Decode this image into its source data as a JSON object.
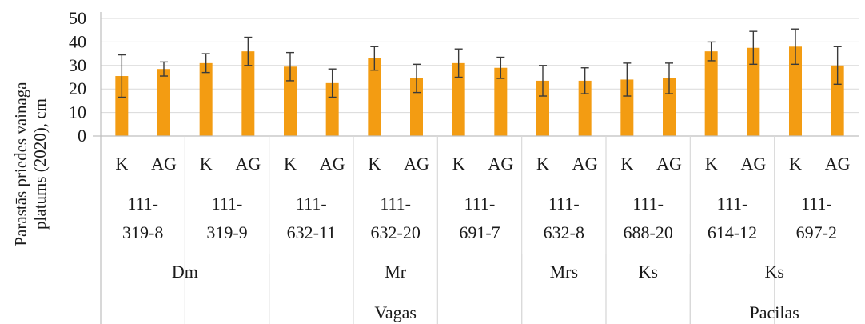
{
  "chart_data": {
    "type": "bar",
    "ylabel_lines": [
      "Parastās priedes vainaga",
      "platums (2020), cm"
    ],
    "ylim": [
      0,
      50
    ],
    "yticks": [
      0,
      10,
      20,
      30,
      40,
      50
    ],
    "grid": true,
    "legend": "none",
    "bar_color": "#f39c12",
    "error_color": "#3a3a3a",
    "categories": [
      "K",
      "AG",
      "K",
      "AG",
      "K",
      "AG",
      "K",
      "AG",
      "K",
      "AG",
      "K",
      "AG",
      "K",
      "AG",
      "K",
      "AG",
      "K",
      "AG"
    ],
    "values": [
      25.5,
      28.5,
      31,
      36,
      29.5,
      22.5,
      33,
      24.5,
      31,
      29,
      23.5,
      23.5,
      24,
      24.5,
      36,
      37.5,
      38,
      30
    ],
    "errors": [
      9,
      3,
      4,
      6,
      6,
      6,
      5,
      6,
      6,
      4.5,
      6.5,
      5.5,
      7,
      6.5,
      4,
      7,
      7.5,
      8
    ],
    "clones": [
      {
        "line1": "111-",
        "line2": "319-8",
        "span": 2
      },
      {
        "line1": "111-",
        "line2": "319-9",
        "span": 2
      },
      {
        "line1": "111-",
        "line2": "632-11",
        "span": 2
      },
      {
        "line1": "111-",
        "line2": "632-20",
        "span": 2
      },
      {
        "line1": "111-",
        "line2": "691-7",
        "span": 2
      },
      {
        "line1": "111-",
        "line2": "632-8",
        "span": 2
      },
      {
        "line1": "111-",
        "line2": "688-20",
        "span": 2
      },
      {
        "line1": "111-",
        "line2": "614-12",
        "span": 2
      },
      {
        "line1": "111-",
        "line2": "697-2",
        "span": 2
      }
    ],
    "forest_types": [
      {
        "label": "Dm",
        "span": 4
      },
      {
        "label": "Mr",
        "span": 6
      },
      {
        "label": "Mrs",
        "span": 2
      },
      {
        "label": "Ks",
        "span": 2
      },
      {
        "label": "Ks",
        "span": 4
      }
    ],
    "regions": [
      {
        "label": "Vagas",
        "span": 14
      },
      {
        "label": "Pacilas",
        "span": 4
      }
    ]
  }
}
